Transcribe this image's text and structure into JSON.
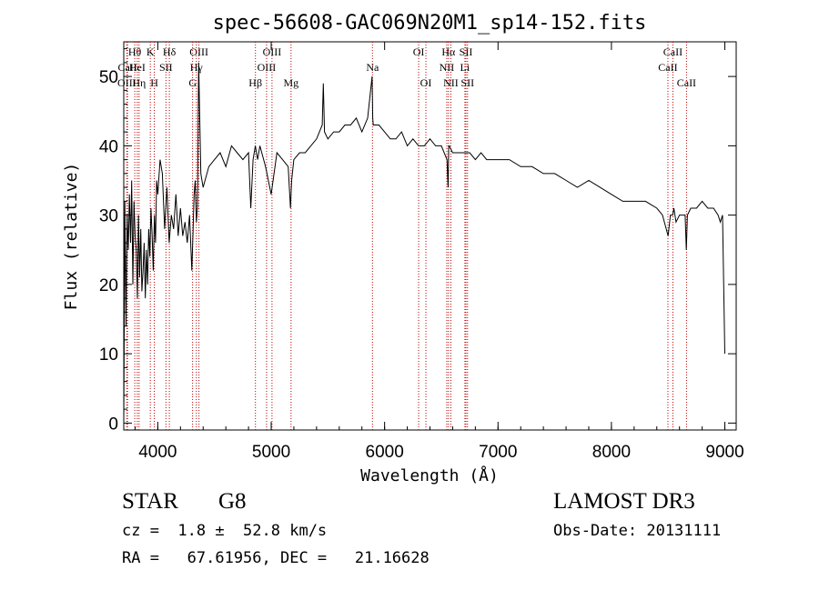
{
  "chart_data": {
    "type": "line",
    "title": "spec-56608-GAC069N20M1_sp14-152.fits",
    "xlabel": "Wavelength (Å)",
    "ylabel": "Flux (relative)",
    "xlim": [
      3700,
      9100
    ],
    "ylim": [
      -1,
      55
    ],
    "xticks": [
      4000,
      5000,
      6000,
      7000,
      8000,
      9000
    ],
    "yticks": [
      0,
      10,
      20,
      30,
      40,
      50
    ],
    "grid": false,
    "series": [
      {
        "name": "spectrum",
        "x": [
          3700,
          3710,
          3720,
          3730,
          3740,
          3750,
          3760,
          3770,
          3780,
          3790,
          3800,
          3810,
          3820,
          3830,
          3840,
          3850,
          3860,
          3870,
          3880,
          3890,
          3900,
          3910,
          3920,
          3930,
          3940,
          3950,
          3960,
          3970,
          3980,
          3990,
          4000,
          4020,
          4040,
          4060,
          4080,
          4100,
          4120,
          4140,
          4160,
          4180,
          4200,
          4220,
          4240,
          4260,
          4280,
          4300,
          4310,
          4320,
          4330,
          4340,
          4350,
          4360,
          4380,
          4400,
          4450,
          4500,
          4550,
          4600,
          4650,
          4700,
          4750,
          4800,
          4820,
          4840,
          4860,
          4880,
          4900,
          4950,
          5000,
          5050,
          5100,
          5150,
          5170,
          5180,
          5200,
          5250,
          5300,
          5350,
          5400,
          5450,
          5460,
          5470,
          5500,
          5550,
          5600,
          5650,
          5700,
          5750,
          5800,
          5850,
          5890,
          5895,
          5900,
          5950,
          6000,
          6050,
          6100,
          6150,
          6200,
          6250,
          6300,
          6350,
          6400,
          6450,
          6500,
          6550,
          6560,
          6565,
          6570,
          6600,
          6650,
          6700,
          6750,
          6800,
          6850,
          6900,
          6950,
          7000,
          7100,
          7200,
          7300,
          7400,
          7500,
          7600,
          7700,
          7800,
          7900,
          8000,
          8100,
          8200,
          8300,
          8400,
          8450,
          8500,
          8520,
          8540,
          8550,
          8570,
          8600,
          8650,
          8660,
          8670,
          8700,
          8750,
          8800,
          8850,
          8900,
          8940,
          8960,
          8980,
          9000
        ],
        "y": [
          0,
          32,
          14,
          30,
          25,
          33,
          26,
          35,
          20,
          32,
          27,
          25,
          18,
          30,
          21,
          28,
          19,
          22,
          26,
          18,
          25,
          20,
          28,
          24,
          31,
          27,
          22,
          30,
          26,
          35,
          33,
          38,
          36,
          28,
          34,
          26,
          30,
          28,
          33,
          27,
          31,
          27,
          29,
          26,
          30,
          22,
          27,
          33,
          35,
          29,
          31,
          52,
          36,
          34,
          37,
          38,
          39,
          37,
          40,
          39,
          38,
          39,
          31,
          38,
          40,
          38,
          40,
          37,
          33,
          39,
          38,
          37,
          31,
          35,
          38,
          39,
          39,
          40,
          41,
          43,
          49,
          42,
          41,
          42,
          42,
          43,
          43,
          44,
          42,
          44,
          50,
          44,
          43,
          43,
          42,
          41,
          41,
          42,
          40,
          41,
          40,
          40,
          41,
          40,
          40,
          38,
          34,
          40,
          40,
          39,
          39,
          39,
          39,
          38,
          39,
          38,
          38,
          38,
          38,
          37,
          37,
          36,
          36,
          35,
          34,
          35,
          34,
          33,
          32,
          32,
          32,
          31,
          30,
          27,
          30,
          30,
          31,
          29,
          30,
          30,
          25,
          30,
          31,
          31,
          32,
          31,
          31,
          30,
          29,
          30,
          10
        ]
      }
    ],
    "line_markers": [
      {
        "label": "Hθ",
        "wavelength": 3797,
        "row": 1
      },
      {
        "label": "CaII",
        "wavelength": 3733,
        "row": 2
      },
      {
        "label": "OIII",
        "wavelength": 3727,
        "row": 3
      },
      {
        "label": "HeI",
        "wavelength": 3819,
        "row": 2
      },
      {
        "label": "Hη",
        "wavelength": 3835,
        "row": 3
      },
      {
        "label": "K",
        "wavelength": 3934,
        "row": 1
      },
      {
        "label": "SII",
        "wavelength": 4072,
        "row": 2
      },
      {
        "label": "H",
        "wavelength": 3969,
        "row": 3
      },
      {
        "label": "Hδ",
        "wavelength": 4102,
        "row": 1
      },
      {
        "label": "OIII",
        "wavelength": 4363,
        "row": 1
      },
      {
        "label": "Hγ",
        "wavelength": 4340,
        "row": 2
      },
      {
        "label": "G",
        "wavelength": 4307,
        "row": 3
      },
      {
        "label": "OIII",
        "wavelength": 5007,
        "row": 1
      },
      {
        "label": "OIII",
        "wavelength": 4959,
        "row": 2
      },
      {
        "label": "Hβ",
        "wavelength": 4861,
        "row": 3
      },
      {
        "label": "Mg",
        "wavelength": 5175,
        "row": 3
      },
      {
        "label": "Na",
        "wavelength": 5893,
        "row": 2
      },
      {
        "label": "OI",
        "wavelength": 6300,
        "row": 1
      },
      {
        "label": "OI",
        "wavelength": 6364,
        "row": 3
      },
      {
        "label": "Hα",
        "wavelength": 6563,
        "row": 1
      },
      {
        "label": "NII",
        "wavelength": 6548,
        "row": 2
      },
      {
        "label": "NII",
        "wavelength": 6584,
        "row": 3
      },
      {
        "label": "SII",
        "wavelength": 6717,
        "row": 1
      },
      {
        "label": "Li",
        "wavelength": 6708,
        "row": 2
      },
      {
        "label": "SII",
        "wavelength": 6731,
        "row": 3
      },
      {
        "label": "CaII",
        "wavelength": 8542,
        "row": 1
      },
      {
        "label": "CaII",
        "wavelength": 8498,
        "row": 2
      },
      {
        "label": "CaII",
        "wavelength": 8662,
        "row": 3
      }
    ],
    "marker_color": "#c00000"
  },
  "info": {
    "object_class": "STAR",
    "subclass": "G8",
    "redshift": "cz =  1.8 ±  52.8 km/s",
    "coords": "RA =   67.61956, DEC =   21.16628",
    "survey": "LAMOST DR3",
    "obs_date": "Obs-Date: 20131111"
  }
}
